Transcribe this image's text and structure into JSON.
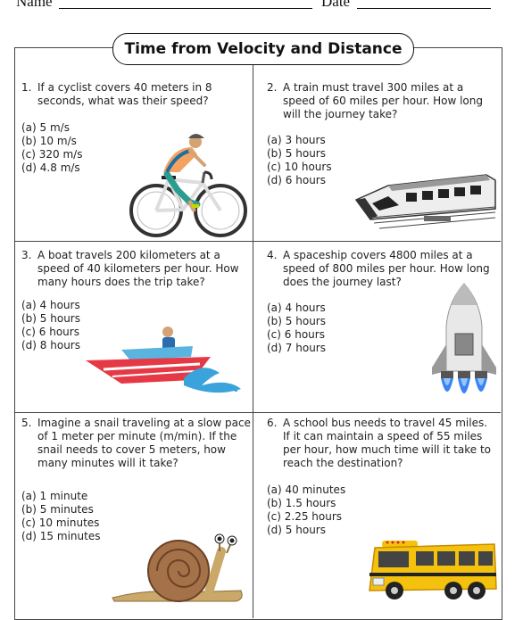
{
  "header": {
    "name_label": "Name",
    "date_label": "Date"
  },
  "title": "Time from Velocity and Distance",
  "questions": [
    {
      "number": "1.",
      "text": "If a cyclist covers 40 meters in 8 seconds, what was their speed?",
      "options": [
        "(a) 5 m/s",
        "(b) 10 m/s",
        "(c)  320 m/s",
        "(d) 4.8 m/s"
      ],
      "picture": "cyclist"
    },
    {
      "number": "2.",
      "text": "A train must travel 300 miles at a speed of 60 miles per hour. How long will the journey take?",
      "options": [
        "(a) 3 hours",
        "(b) 5 hours",
        "(c)  10 hours",
        "(d) 6 hours"
      ],
      "picture": "train"
    },
    {
      "number": "3.",
      "text": "A boat travels 200 kilometers at a speed of 40 kilometers per hour. How many hours does the trip take?",
      "options": [
        "(a) 4 hours",
        "(b) 5 hours",
        "(c)  6 hours",
        "(d) 8 hours"
      ],
      "picture": "speedboat"
    },
    {
      "number": "4.",
      "text": "A spaceship covers 4800 miles at a speed of 800 miles per hour. How long does the journey last?",
      "options": [
        "(a) 4 hours",
        "(b) 5 hours",
        "(c)  6 hours",
        "(d) 7 hours"
      ],
      "picture": "rocket"
    },
    {
      "number": "5.",
      "text": "Imagine a snail traveling at a slow pace of 1 meter per minute (m/min). If the snail needs to cover 5 meters, how many minutes will it take?",
      "options": [
        "(a) 1 minute",
        "(b) 5 minutes",
        "(c)  10 minutes",
        "(d) 15 minutes"
      ],
      "picture": "snail"
    },
    {
      "number": "6.",
      "text": "A school bus needs to travel 45 miles. If it can maintain a speed of 55 miles per hour, how much time will it take to reach the destination?",
      "options": [
        "(a) 40 minutes",
        "(b) 1.5 hours",
        "(c)  2.25 hours",
        "(d) 5 hours"
      ],
      "picture": "school-bus"
    }
  ]
}
